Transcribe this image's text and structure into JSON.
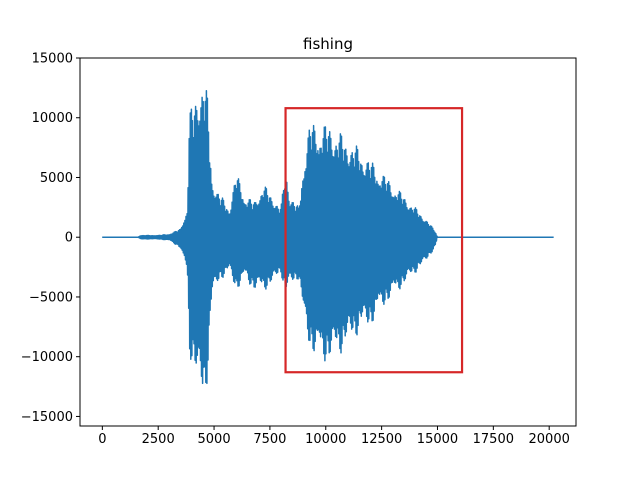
{
  "chart_data": {
    "type": "line",
    "title": "fishing",
    "xlabel": "",
    "ylabel": "",
    "xlim": [
      -1000,
      21200
    ],
    "ylim": [
      -15800,
      15000
    ],
    "x_ticks": [
      0,
      2500,
      5000,
      7500,
      10000,
      12500,
      15000,
      17500,
      20000
    ],
    "y_ticks": [
      -15000,
      -10000,
      -5000,
      0,
      5000,
      10000,
      15000
    ],
    "series": [
      {
        "color": "#1f77b4",
        "num_samples": 20200,
        "envelope": [
          {
            "x": 0,
            "max": 0,
            "min": 0
          },
          {
            "x": 1600,
            "max": 0,
            "min": 0
          },
          {
            "x": 1700,
            "max": 150,
            "min": -150
          },
          {
            "x": 2500,
            "max": 150,
            "min": -150
          },
          {
            "x": 3000,
            "max": 250,
            "min": -250
          },
          {
            "x": 3500,
            "max": 700,
            "min": -900
          },
          {
            "x": 3800,
            "max": 2500,
            "min": -3000
          },
          {
            "x": 3900,
            "max": 10500,
            "min": -10000
          },
          {
            "x": 4100,
            "max": 11500,
            "min": -11000
          },
          {
            "x": 4300,
            "max": 12800,
            "min": -12500
          },
          {
            "x": 4500,
            "max": 13800,
            "min": -14400
          },
          {
            "x": 4700,
            "max": 12000,
            "min": -12000
          },
          {
            "x": 4900,
            "max": 5000,
            "min": -5000
          },
          {
            "x": 5300,
            "max": 3500,
            "min": -3500
          },
          {
            "x": 5700,
            "max": 2500,
            "min": -3000
          },
          {
            "x": 6000,
            "max": 5500,
            "min": -4500
          },
          {
            "x": 6400,
            "max": 3500,
            "min": -3500
          },
          {
            "x": 6800,
            "max": 3000,
            "min": -4500
          },
          {
            "x": 7200,
            "max": 4500,
            "min": -4500
          },
          {
            "x": 7600,
            "max": 3500,
            "min": -4000
          },
          {
            "x": 8000,
            "max": 2500,
            "min": -3000
          },
          {
            "x": 8200,
            "max": 6200,
            "min": -5000
          },
          {
            "x": 8400,
            "max": 3500,
            "min": -4000
          },
          {
            "x": 8800,
            "max": 2500,
            "min": -3500
          },
          {
            "x": 9000,
            "max": 6500,
            "min": -7000
          },
          {
            "x": 9300,
            "max": 9800,
            "min": -9500
          },
          {
            "x": 9700,
            "max": 9500,
            "min": -10500
          },
          {
            "x": 10200,
            "max": 9500,
            "min": -10500
          },
          {
            "x": 10800,
            "max": 8500,
            "min": -9500
          },
          {
            "x": 11500,
            "max": 7500,
            "min": -8000
          },
          {
            "x": 12000,
            "max": 6500,
            "min": -7500
          },
          {
            "x": 12500,
            "max": 5500,
            "min": -6000
          },
          {
            "x": 13000,
            "max": 4500,
            "min": -5000
          },
          {
            "x": 13500,
            "max": 3500,
            "min": -4000
          },
          {
            "x": 14000,
            "max": 2500,
            "min": -3000
          },
          {
            "x": 14500,
            "max": 1500,
            "min": -2000
          },
          {
            "x": 14900,
            "max": 500,
            "min": -800
          },
          {
            "x": 15000,
            "max": 0,
            "min": 0
          },
          {
            "x": 20200,
            "max": 0,
            "min": 0
          }
        ]
      }
    ],
    "annotation": {
      "type": "rectangle",
      "color": "#d62728",
      "x_range": [
        8200,
        16100
      ],
      "y_range": [
        -11300,
        10800
      ]
    },
    "grid": false,
    "legend": "none"
  }
}
